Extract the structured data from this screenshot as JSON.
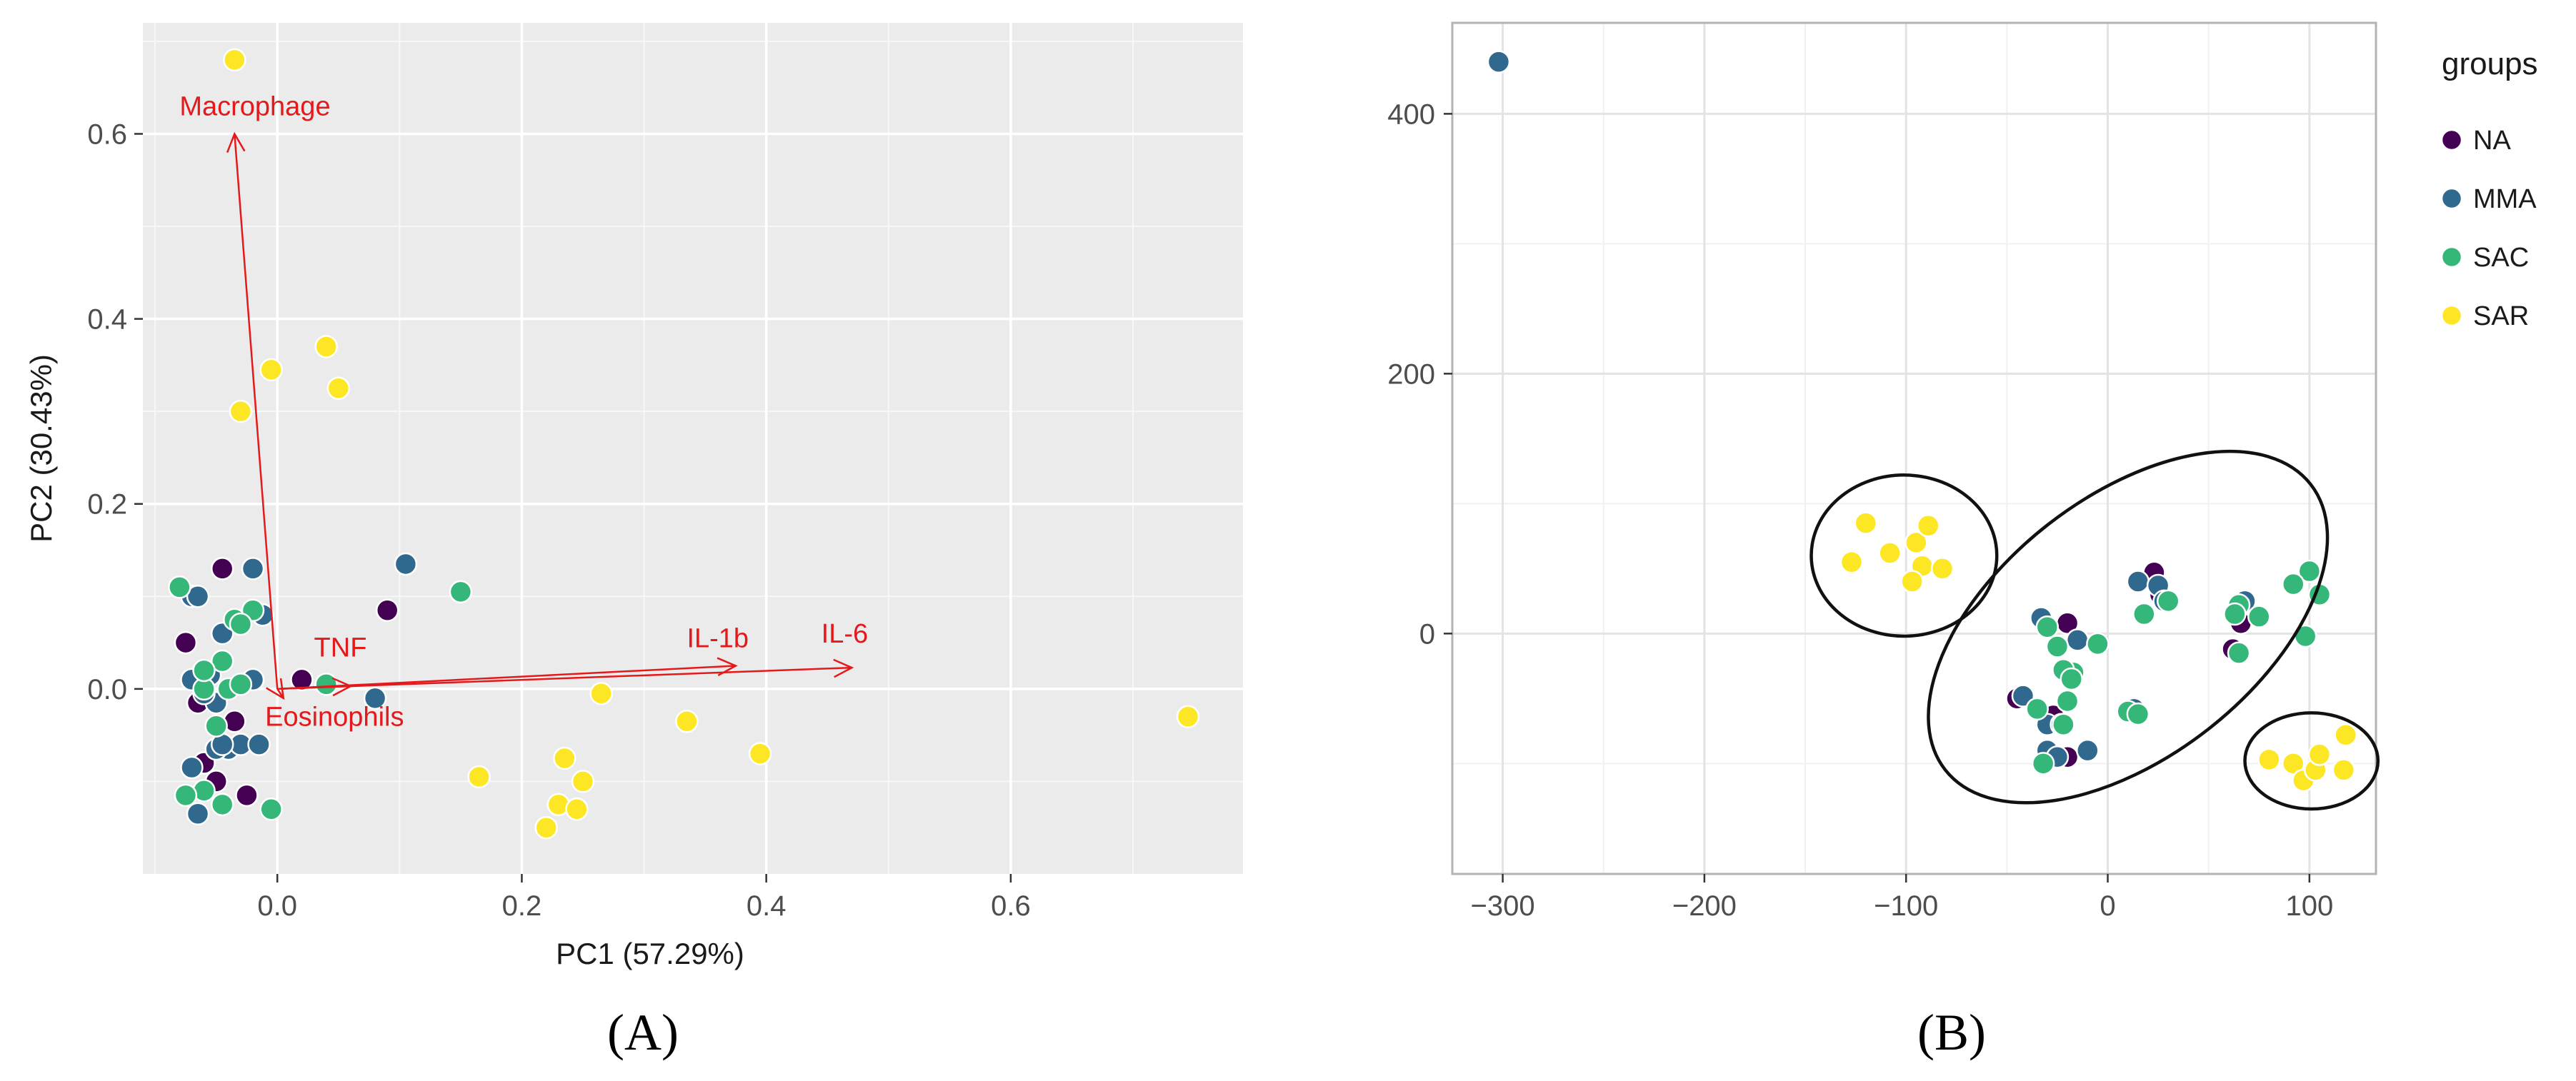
{
  "panel_labels": {
    "a": "(A)",
    "b": "(B)"
  },
  "colors": {
    "NA": "#440154",
    "MMA": "#31688e",
    "SAC": "#35b779",
    "SAR": "#fde725",
    "arrow": "#e31a1c"
  },
  "chart_data": [
    {
      "type": "scatter",
      "panel": "A",
      "xlabel": "PC1 (57.29%)",
      "ylabel": "PC2 (30.43%)",
      "xlim": [
        -0.11,
        0.79
      ],
      "ylim": [
        -0.2,
        0.72
      ],
      "xticks": [
        0.0,
        0.2,
        0.4,
        0.6
      ],
      "xtick_labels": [
        "0.0",
        "0.2",
        "0.4",
        "0.6"
      ],
      "yticks": [
        0.0,
        0.2,
        0.4,
        0.6
      ],
      "ytick_labels": [
        "0.0",
        "0.2",
        "0.4",
        "0.6"
      ],
      "background": "grey-panel",
      "grid": true,
      "arrows": [
        {
          "label": "Macrophage",
          "x": -0.035,
          "y": 0.6
        },
        {
          "label": "TNF",
          "x": 0.06,
          "y": 0.003
        },
        {
          "label": "Eosinophils",
          "x": 0.005,
          "y": -0.01
        },
        {
          "label": "IL-1b",
          "x": 0.375,
          "y": 0.025
        },
        {
          "label": "IL-6",
          "x": 0.47,
          "y": 0.023
        }
      ],
      "arrow_label_positions": [
        {
          "label": "Macrophage",
          "x": -0.08,
          "y": 0.62
        },
        {
          "label": "TNF",
          "x": 0.03,
          "y": 0.035
        },
        {
          "label": "Eosinophils",
          "x": -0.01,
          "y": -0.04
        },
        {
          "label": "IL-1b",
          "x": 0.335,
          "y": 0.045
        },
        {
          "label": "IL-6",
          "x": 0.445,
          "y": 0.05
        }
      ],
      "series": [
        {
          "group": "NA",
          "points": [
            [
              -0.045,
              0.13
            ],
            [
              -0.075,
              0.05
            ],
            [
              -0.065,
              -0.015
            ],
            [
              -0.035,
              -0.035
            ],
            [
              -0.05,
              -0.1
            ],
            [
              -0.025,
              -0.115
            ],
            [
              0.02,
              0.01
            ],
            [
              0.09,
              0.085
            ],
            [
              -0.06,
              -0.08
            ]
          ]
        },
        {
          "group": "MMA",
          "points": [
            [
              -0.07,
              0.1
            ],
            [
              -0.065,
              0.1
            ],
            [
              -0.045,
              0.06
            ],
            [
              -0.02,
              0.13
            ],
            [
              -0.012,
              0.08
            ],
            [
              -0.07,
              0.01
            ],
            [
              -0.055,
              0.015
            ],
            [
              -0.05,
              -0.015
            ],
            [
              -0.04,
              -0.065
            ],
            [
              -0.03,
              -0.06
            ],
            [
              -0.015,
              -0.06
            ],
            [
              -0.07,
              -0.085
            ],
            [
              -0.065,
              -0.135
            ],
            [
              -0.05,
              -0.065
            ],
            [
              -0.02,
              0.01
            ],
            [
              0.08,
              -0.01
            ],
            [
              0.105,
              0.135
            ],
            [
              -0.06,
              -0.005
            ],
            [
              -0.045,
              -0.06
            ]
          ]
        },
        {
          "group": "SAC",
          "points": [
            [
              -0.08,
              0.11
            ],
            [
              -0.035,
              0.075
            ],
            [
              -0.02,
              0.085
            ],
            [
              -0.03,
              0.07
            ],
            [
              -0.045,
              0.03
            ],
            [
              -0.06,
              0.0
            ],
            [
              -0.04,
              0.0
            ],
            [
              -0.03,
              0.005
            ],
            [
              -0.05,
              -0.04
            ],
            [
              -0.06,
              -0.11
            ],
            [
              -0.075,
              -0.115
            ],
            [
              -0.045,
              -0.125
            ],
            [
              -0.005,
              -0.13
            ],
            [
              0.04,
              0.005
            ],
            [
              0.15,
              0.105
            ],
            [
              -0.06,
              0.02
            ],
            [
              -0.045,
              -0.125
            ]
          ]
        },
        {
          "group": "SAR",
          "points": [
            [
              -0.035,
              0.68
            ],
            [
              0.04,
              0.37
            ],
            [
              -0.005,
              0.345
            ],
            [
              0.05,
              0.325
            ],
            [
              -0.03,
              0.3
            ],
            [
              0.265,
              -0.005
            ],
            [
              0.335,
              -0.035
            ],
            [
              0.395,
              -0.07
            ],
            [
              0.745,
              -0.03
            ],
            [
              0.165,
              -0.095
            ],
            [
              0.235,
              -0.075
            ],
            [
              0.25,
              -0.1
            ],
            [
              0.23,
              -0.125
            ],
            [
              0.245,
              -0.13
            ],
            [
              0.22,
              -0.15
            ]
          ]
        }
      ]
    },
    {
      "type": "scatter",
      "panel": "B",
      "xlim": [
        -325,
        133
      ],
      "ylim": [
        -185,
        470
      ],
      "xticks": [
        -300,
        -200,
        -100,
        0,
        100
      ],
      "xtick_labels": [
        "−300",
        "−200",
        "−100",
        "0",
        "100"
      ],
      "yticks": [
        0,
        200,
        400
      ],
      "ytick_labels": [
        "0",
        "200",
        "400"
      ],
      "background": "white-panel",
      "grid": true,
      "legend": {
        "title": "groups",
        "entries": [
          "NA",
          "MMA",
          "SAC",
          "SAR"
        ],
        "position": "right"
      },
      "ellipses": [
        {
          "cx": -101,
          "cy": 60,
          "rx": 46,
          "ry": 62
        },
        {
          "cx": 10,
          "cy": 5,
          "rx": 115,
          "ry": 100
        },
        {
          "cx": 101,
          "cy": -98,
          "rx": 33,
          "ry": 37
        }
      ],
      "series": [
        {
          "group": "NA",
          "points": [
            [
              23,
              47
            ],
            [
              -45,
              -50
            ],
            [
              -20,
              8
            ],
            [
              -28,
              -70
            ],
            [
              -20,
              -95
            ],
            [
              -27,
              -63
            ],
            [
              13,
              -57
            ],
            [
              26,
              30
            ],
            [
              62,
              -12
            ],
            [
              66,
              8
            ]
          ]
        },
        {
          "group": "MMA",
          "points": [
            [
              -302,
              440
            ],
            [
              15,
              40
            ],
            [
              25,
              37
            ],
            [
              28,
              25
            ],
            [
              -33,
              12
            ],
            [
              -15,
              -5
            ],
            [
              -30,
              -90
            ],
            [
              -10,
              -90
            ],
            [
              -42,
              -48
            ],
            [
              -25,
              -95
            ],
            [
              -30,
              -70
            ],
            [
              13,
              -58
            ],
            [
              68,
              25
            ],
            [
              -23,
              -70
            ]
          ]
        },
        {
          "group": "SAC",
          "points": [
            [
              30,
              25
            ],
            [
              18,
              15
            ],
            [
              65,
              22
            ],
            [
              75,
              13
            ],
            [
              63,
              15
            ],
            [
              100,
              48
            ],
            [
              92,
              38
            ],
            [
              105,
              30
            ],
            [
              98,
              -2
            ],
            [
              65,
              -15
            ],
            [
              -5,
              -8
            ],
            [
              -25,
              -10
            ],
            [
              -30,
              5
            ],
            [
              -17,
              -30
            ],
            [
              -22,
              -28
            ],
            [
              -35,
              -58
            ],
            [
              -20,
              -52
            ],
            [
              -18,
              -35
            ],
            [
              10,
              -60
            ],
            [
              -32,
              -100
            ],
            [
              -22,
              -70
            ],
            [
              15,
              -62
            ]
          ]
        },
        {
          "group": "SAR",
          "points": [
            [
              -120,
              85
            ],
            [
              -108,
              62
            ],
            [
              -95,
              70
            ],
            [
              -89,
              83
            ],
            [
              -127,
              55
            ],
            [
              -92,
              52
            ],
            [
              -82,
              50
            ],
            [
              -97,
              40
            ],
            [
              80,
              -97
            ],
            [
              92,
              -100
            ],
            [
              97,
              -113
            ],
            [
              103,
              -105
            ],
            [
              105,
              -93
            ],
            [
              118,
              -78
            ],
            [
              117,
              -105
            ]
          ]
        }
      ]
    }
  ]
}
